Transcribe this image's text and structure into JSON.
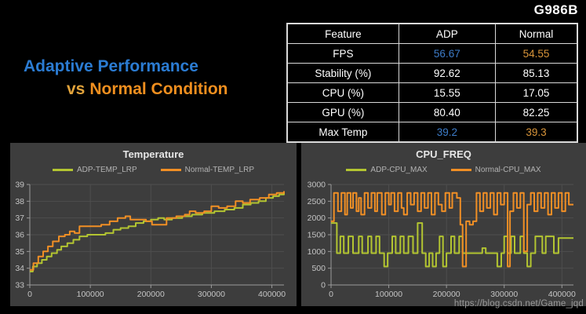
{
  "page": {
    "device_label": "G986B",
    "title_line1": "Adaptive Performance",
    "title_vs": "vs",
    "title_line2": "Normal Condition",
    "watermark": "https://blog.csdn.net/Game_jqd",
    "colors": {
      "adp_line": "#b3c531",
      "normal_line": "#f18f25",
      "value_blue": "#3d7cc9",
      "value_orange": "#d9953a",
      "panel_bg": "#3d3d3d",
      "grid": "#4e4e4e",
      "axis": "#9a9a9a",
      "tick_text": "#c4c4c4"
    }
  },
  "table": {
    "headers": [
      "Feature",
      "ADP",
      "Normal"
    ],
    "rows": [
      {
        "feature": "FPS",
        "adp": "56.67",
        "normal": "54.55",
        "adp_color": "#3d7cc9",
        "normal_color": "#d9953a"
      },
      {
        "feature": "Stability (%)",
        "adp": "92.62",
        "normal": "85.13",
        "adp_color": null,
        "normal_color": null
      },
      {
        "feature": "CPU (%)",
        "adp": "15.55",
        "normal": "17.05",
        "adp_color": null,
        "normal_color": null
      },
      {
        "feature": "GPU (%)",
        "adp": "80.40",
        "normal": "82.25",
        "adp_color": null,
        "normal_color": null
      },
      {
        "feature": "Max Temp",
        "adp": "39.2",
        "normal": "39.3",
        "adp_color": "#3d7cc9",
        "normal_color": "#d9953a"
      }
    ]
  },
  "chart_data": [
    {
      "type": "line",
      "title": "Temperature",
      "step": true,
      "grid": true,
      "legend_position": "top",
      "xlim": [
        0,
        420000
      ],
      "ylim": [
        33,
        39
      ],
      "xticks": [
        0,
        100000,
        200000,
        300000,
        400000
      ],
      "yticks": [
        33,
        34,
        35,
        36,
        37,
        38,
        39
      ],
      "series": [
        {
          "name": "ADP-TEMP_LRP",
          "color": "#b3c531",
          "points": [
            [
              0,
              33.8
            ],
            [
              5000,
              34.1
            ],
            [
              12000,
              34.3
            ],
            [
              20000,
              34.5
            ],
            [
              28000,
              34.7
            ],
            [
              36000,
              34.9
            ],
            [
              45000,
              35.1
            ],
            [
              52000,
              35.3
            ],
            [
              62000,
              35.5
            ],
            [
              72000,
              35.7
            ],
            [
              82000,
              35.9
            ],
            [
              95000,
              36.0
            ],
            [
              125000,
              36.1
            ],
            [
              138000,
              36.3
            ],
            [
              150000,
              36.4
            ],
            [
              163000,
              36.5
            ],
            [
              175000,
              36.7
            ],
            [
              188000,
              36.8
            ],
            [
              200000,
              36.9
            ],
            [
              212000,
              37.0
            ],
            [
              222000,
              36.9
            ],
            [
              235000,
              37.0
            ],
            [
              252000,
              37.1
            ],
            [
              268000,
              37.2
            ],
            [
              285000,
              37.3
            ],
            [
              305000,
              37.4
            ],
            [
              322000,
              37.5
            ],
            [
              338000,
              37.6
            ],
            [
              352000,
              37.8
            ],
            [
              365000,
              37.9
            ],
            [
              378000,
              38.0
            ],
            [
              390000,
              38.2
            ],
            [
              402000,
              38.3
            ],
            [
              412000,
              38.4
            ],
            [
              420000,
              38.5
            ]
          ]
        },
        {
          "name": "Normal-TEMP_LRP",
          "color": "#f18f25",
          "points": [
            [
              0,
              33.9
            ],
            [
              6000,
              34.3
            ],
            [
              14000,
              34.7
            ],
            [
              22000,
              35.0
            ],
            [
              30000,
              35.3
            ],
            [
              38000,
              35.6
            ],
            [
              48000,
              35.9
            ],
            [
              58000,
              36.0
            ],
            [
              66000,
              36.2
            ],
            [
              74000,
              36.1
            ],
            [
              82000,
              36.5
            ],
            [
              118000,
              36.6
            ],
            [
              132000,
              36.8
            ],
            [
              145000,
              37.0
            ],
            [
              158000,
              37.1
            ],
            [
              166000,
              36.9
            ],
            [
              178000,
              36.9
            ],
            [
              192000,
              36.8
            ],
            [
              202000,
              36.6
            ],
            [
              218000,
              36.6
            ],
            [
              226000,
              37.0
            ],
            [
              242000,
              37.1
            ],
            [
              256000,
              37.2
            ],
            [
              264000,
              37.4
            ],
            [
              274000,
              37.3
            ],
            [
              288000,
              37.4
            ],
            [
              300000,
              37.7
            ],
            [
              312000,
              37.6
            ],
            [
              326000,
              37.7
            ],
            [
              340000,
              38.0
            ],
            [
              352000,
              37.9
            ],
            [
              364000,
              38.1
            ],
            [
              380000,
              38.2
            ],
            [
              395000,
              38.4
            ],
            [
              408000,
              38.5
            ],
            [
              420000,
              38.6
            ]
          ]
        }
      ]
    },
    {
      "type": "line",
      "title": "CPU_FREQ",
      "step": true,
      "grid": true,
      "legend_position": "top",
      "xlim": [
        0,
        420000
      ],
      "ylim": [
        0,
        3000
      ],
      "xticks": [
        0,
        100000,
        200000,
        300000,
        400000
      ],
      "yticks": [
        0,
        500,
        1000,
        1500,
        2000,
        2500,
        3000
      ],
      "series": [
        {
          "name": "ADP-CPU_MAX",
          "color": "#b3c531",
          "points": [
            [
              0,
              1850
            ],
            [
              10000,
              950
            ],
            [
              16000,
              1450
            ],
            [
              22000,
              950
            ],
            [
              30000,
              1450
            ],
            [
              38000,
              950
            ],
            [
              48000,
              1450
            ],
            [
              54000,
              950
            ],
            [
              64000,
              1450
            ],
            [
              70000,
              950
            ],
            [
              78000,
              1450
            ],
            [
              84000,
              950
            ],
            [
              92000,
              550
            ],
            [
              98000,
              950
            ],
            [
              106000,
              1450
            ],
            [
              112000,
              950
            ],
            [
              120000,
              1450
            ],
            [
              126000,
              950
            ],
            [
              134000,
              1450
            ],
            [
              142000,
              950
            ],
            [
              150000,
              1850
            ],
            [
              158000,
              950
            ],
            [
              164000,
              550
            ],
            [
              170000,
              950
            ],
            [
              176000,
              550
            ],
            [
              182000,
              950
            ],
            [
              188000,
              1450
            ],
            [
              194000,
              550
            ],
            [
              200000,
              950
            ],
            [
              208000,
              1450
            ],
            [
              214000,
              950
            ],
            [
              222000,
              1450
            ],
            [
              228000,
              950
            ],
            [
              262000,
              1100
            ],
            [
              268000,
              950
            ],
            [
              288000,
              550
            ],
            [
              295000,
              950
            ],
            [
              300000,
              1450
            ],
            [
              306000,
              950
            ],
            [
              312000,
              1450
            ],
            [
              318000,
              950
            ],
            [
              328000,
              1450
            ],
            [
              334000,
              950
            ],
            [
              340000,
              550
            ],
            [
              346000,
              950
            ],
            [
              354000,
              1450
            ],
            [
              366000,
              950
            ],
            [
              372000,
              1450
            ],
            [
              386000,
              950
            ],
            [
              394000,
              1400
            ],
            [
              420000,
              1400
            ]
          ]
        },
        {
          "name": "Normal-CPU_MAX",
          "color": "#f18f25",
          "points": [
            [
              0,
              1900
            ],
            [
              5000,
              2750
            ],
            [
              12000,
              2200
            ],
            [
              18000,
              2750
            ],
            [
              24000,
              2100
            ],
            [
              28000,
              2750
            ],
            [
              34000,
              2300
            ],
            [
              38000,
              2750
            ],
            [
              44000,
              2200
            ],
            [
              48000,
              2600
            ],
            [
              52000,
              2100
            ],
            [
              58000,
              2750
            ],
            [
              64000,
              2300
            ],
            [
              70000,
              2750
            ],
            [
              76000,
              2200
            ],
            [
              80000,
              2750
            ],
            [
              88000,
              2100
            ],
            [
              94000,
              2750
            ],
            [
              100000,
              2400
            ],
            [
              104000,
              2750
            ],
            [
              110000,
              2200
            ],
            [
              116000,
              2750
            ],
            [
              122000,
              2300
            ],
            [
              126000,
              2100
            ],
            [
              132000,
              2750
            ],
            [
              138000,
              2400
            ],
            [
              144000,
              2750
            ],
            [
              150000,
              2200
            ],
            [
              156000,
              2750
            ],
            [
              162000,
              2300
            ],
            [
              168000,
              2750
            ],
            [
              174000,
              2100
            ],
            [
              180000,
              2750
            ],
            [
              186000,
              2400
            ],
            [
              192000,
              2200
            ],
            [
              198000,
              2750
            ],
            [
              205000,
              2300
            ],
            [
              210000,
              2750
            ],
            [
              218000,
              2600
            ],
            [
              224000,
              1800
            ],
            [
              228000,
              550
            ],
            [
              234000,
              1900
            ],
            [
              240000,
              1800
            ],
            [
              246000,
              1900
            ],
            [
              252000,
              2750
            ],
            [
              258000,
              2200
            ],
            [
              264000,
              2750
            ],
            [
              270000,
              2300
            ],
            [
              276000,
              2750
            ],
            [
              282000,
              2100
            ],
            [
              288000,
              2750
            ],
            [
              294000,
              2400
            ],
            [
              300000,
              2750
            ],
            [
              306000,
              550
            ],
            [
              310000,
              2200
            ],
            [
              316000,
              2750
            ],
            [
              322000,
              2300
            ],
            [
              328000,
              2750
            ],
            [
              334000,
              1000
            ],
            [
              340000,
              2400
            ],
            [
              346000,
              2750
            ],
            [
              352000,
              2200
            ],
            [
              358000,
              2750
            ],
            [
              364000,
              2300
            ],
            [
              370000,
              2750
            ],
            [
              376000,
              2100
            ],
            [
              382000,
              2750
            ],
            [
              388000,
              2300
            ],
            [
              394000,
              2750
            ],
            [
              400000,
              2200
            ],
            [
              406000,
              2750
            ],
            [
              412000,
              2400
            ],
            [
              420000,
              2400
            ]
          ]
        }
      ]
    }
  ]
}
